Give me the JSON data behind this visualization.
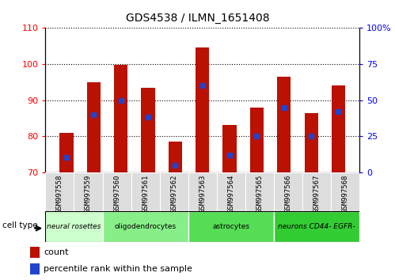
{
  "title": "GDS4538 / ILMN_1651408",
  "samples": [
    "GSM997558",
    "GSM997559",
    "GSM997560",
    "GSM997561",
    "GSM997562",
    "GSM997563",
    "GSM997564",
    "GSM997565",
    "GSM997566",
    "GSM997567",
    "GSM997568"
  ],
  "bar_values": [
    81.0,
    95.0,
    99.8,
    93.5,
    78.5,
    104.5,
    83.0,
    88.0,
    96.5,
    86.5,
    94.0
  ],
  "percentile_values": [
    10,
    40,
    50,
    38,
    5,
    60,
    12,
    25,
    45,
    25,
    42
  ],
  "bar_color": "#bb1100",
  "dot_color": "#2244cc",
  "ylim_left": [
    70,
    110
  ],
  "ylim_right": [
    0,
    100
  ],
  "yticks_left": [
    70,
    80,
    90,
    100,
    110
  ],
  "yticks_right": [
    0,
    25,
    50,
    75,
    100
  ],
  "ytick_labels_right": [
    "0",
    "25",
    "50",
    "75",
    "100%"
  ],
  "cell_types": [
    {
      "label": "neural rosettes",
      "color": "#ccffcc",
      "start": 0,
      "end": 2
    },
    {
      "label": "oligodendrocytes",
      "color": "#88ee88",
      "start": 2,
      "end": 5
    },
    {
      "label": "astrocytes",
      "color": "#55dd55",
      "start": 5,
      "end": 8
    },
    {
      "label": "neurons CD44- EGFR-",
      "color": "#33cc33",
      "start": 8,
      "end": 11
    }
  ],
  "cell_type_label": "cell type",
  "legend_count_label": "count",
  "legend_percentile_label": "percentile rank within the sample",
  "bar_bottom": 70,
  "tick_bg_color": "#dddddd",
  "title_fontsize": 10,
  "bar_width": 0.5
}
